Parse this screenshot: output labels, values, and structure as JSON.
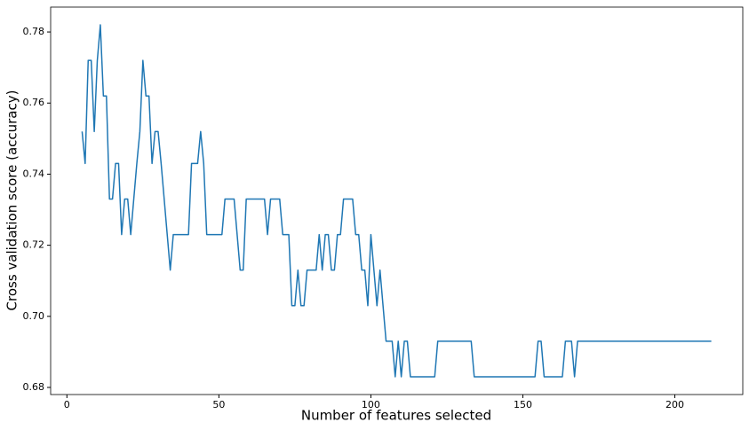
{
  "chart_data": {
    "type": "line",
    "x_label": "Number of features selected",
    "y_label": "Cross validation score (accuracy)",
    "x": [
      5,
      6,
      7,
      8,
      9,
      10,
      11,
      12,
      13,
      14,
      15,
      16,
      17,
      18,
      19,
      20,
      21,
      22,
      23,
      24,
      25,
      26,
      27,
      28,
      29,
      30,
      31,
      32,
      33,
      34,
      35,
      36,
      37,
      38,
      39,
      40,
      41,
      42,
      43,
      44,
      45,
      46,
      47,
      48,
      49,
      50,
      51,
      52,
      53,
      54,
      55,
      56,
      57,
      58,
      59,
      60,
      61,
      62,
      63,
      64,
      65,
      66,
      67,
      68,
      69,
      70,
      71,
      72,
      73,
      74,
      75,
      76,
      77,
      78,
      79,
      80,
      81,
      82,
      83,
      84,
      85,
      86,
      87,
      88,
      89,
      90,
      91,
      92,
      93,
      94,
      95,
      96,
      97,
      98,
      99,
      100,
      101,
      102,
      103,
      104,
      105,
      106,
      107,
      108,
      109,
      110,
      111,
      112,
      113,
      114,
      115,
      116,
      117,
      118,
      119,
      120,
      121,
      122,
      123,
      124,
      125,
      126,
      127,
      128,
      129,
      130,
      131,
      132,
      133,
      134,
      135,
      136,
      137,
      138,
      139,
      140,
      141,
      142,
      143,
      144,
      145,
      146,
      147,
      148,
      149,
      150,
      151,
      152,
      153,
      154,
      155,
      156,
      157,
      158,
      159,
      160,
      161,
      162,
      163,
      164,
      165,
      166,
      167,
      168,
      169,
      170,
      171,
      172,
      173,
      174,
      175,
      176,
      177,
      178,
      179,
      180,
      181,
      182,
      183,
      184,
      185,
      186,
      187,
      188,
      189,
      190,
      191,
      192,
      193,
      194,
      195,
      196,
      197,
      198,
      199,
      200,
      201,
      202,
      203,
      204,
      205,
      206,
      207,
      208,
      209,
      210,
      211,
      212
    ],
    "series": [
      {
        "color": "#1f77b4",
        "values": [
          0.752,
          0.743,
          0.772,
          0.772,
          0.752,
          0.772,
          0.782,
          0.762,
          0.762,
          0.733,
          0.733,
          0.743,
          0.743,
          0.723,
          0.733,
          0.733,
          0.723,
          0.733,
          0.743,
          0.752,
          0.772,
          0.762,
          0.762,
          0.743,
          0.752,
          0.752,
          0.743,
          0.733,
          0.723,
          0.713,
          0.723,
          0.723,
          0.723,
          0.723,
          0.723,
          0.723,
          0.743,
          0.743,
          0.743,
          0.752,
          0.743,
          0.723,
          0.723,
          0.723,
          0.723,
          0.723,
          0.723,
          0.733,
          0.733,
          0.733,
          0.733,
          0.723,
          0.713,
          0.713,
          0.733,
          0.733,
          0.733,
          0.733,
          0.733,
          0.733,
          0.733,
          0.723,
          0.733,
          0.733,
          0.733,
          0.733,
          0.723,
          0.723,
          0.723,
          0.703,
          0.703,
          0.713,
          0.703,
          0.703,
          0.713,
          0.713,
          0.713,
          0.713,
          0.723,
          0.713,
          0.723,
          0.723,
          0.713,
          0.713,
          0.723,
          0.723,
          0.733,
          0.733,
          0.733,
          0.733,
          0.723,
          0.723,
          0.713,
          0.713,
          0.703,
          0.723,
          0.713,
          0.703,
          0.713,
          0.703,
          0.693,
          0.693,
          0.693,
          0.683,
          0.693,
          0.683,
          0.693,
          0.693,
          0.683,
          0.683,
          0.683,
          0.683,
          0.683,
          0.683,
          0.683,
          0.683,
          0.683,
          0.693,
          0.693,
          0.693,
          0.693,
          0.693,
          0.693,
          0.693,
          0.693,
          0.693,
          0.693,
          0.693,
          0.693,
          0.683,
          0.683,
          0.683,
          0.683,
          0.683,
          0.683,
          0.683,
          0.683,
          0.683,
          0.683,
          0.683,
          0.683,
          0.683,
          0.683,
          0.683,
          0.683,
          0.683,
          0.683,
          0.683,
          0.683,
          0.683,
          0.693,
          0.693,
          0.683,
          0.683,
          0.683,
          0.683,
          0.683,
          0.683,
          0.683,
          0.693,
          0.693,
          0.693,
          0.683,
          0.693,
          0.693,
          0.693,
          0.693,
          0.693,
          0.693,
          0.693,
          0.693,
          0.693,
          0.693,
          0.693,
          0.693,
          0.693,
          0.693,
          0.693,
          0.693,
          0.693,
          0.693,
          0.693,
          0.693,
          0.693,
          0.693,
          0.693,
          0.693,
          0.693,
          0.693,
          0.693,
          0.693,
          0.693,
          0.693,
          0.693,
          0.693,
          0.693,
          0.693,
          0.693,
          0.693,
          0.693,
          0.693,
          0.693,
          0.693,
          0.693,
          0.693,
          0.693,
          0.693,
          0.693
        ]
      }
    ],
    "xlim": [
      -5.35,
      222.35
    ],
    "xticks": [
      0,
      50,
      100,
      150,
      200
    ],
    "ylim": [
      0.678,
      0.787
    ],
    "yticks": [
      0.68,
      {
        "value": 0.7,
        "label": "0.70"
      },
      0.72,
      0.74,
      0.76,
      0.78
    ],
    "grid": false
  }
}
